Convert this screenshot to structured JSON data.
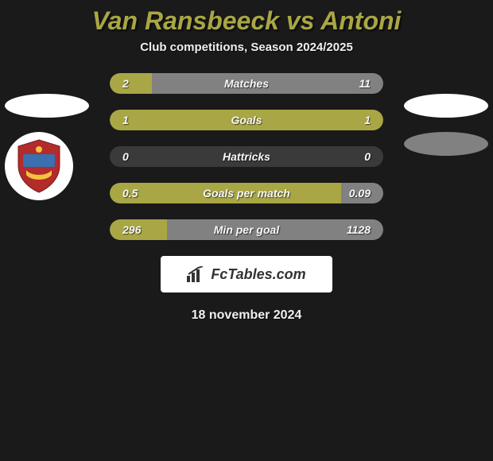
{
  "colors": {
    "bar_track": "#3a3a3a",
    "accent": "#a9a645",
    "gray_fill": "#818181",
    "white_fill": "#ffffff",
    "background": "#1a1a1a",
    "title_color": "#a9a645",
    "text_color": "#f7f7f7"
  },
  "header": {
    "title": "Van Ransbeeck vs Antoni",
    "subtitle": "Club competitions, Season 2024/2025",
    "title_fontsize": 32,
    "subtitle_fontsize": 15
  },
  "left_player": {
    "name": "Van Ransbeeck",
    "ellipse_color": "#ffffff",
    "badge_shield_color": "#b32b2b",
    "badge_shield_accent": "#3a6fb0",
    "badge_ring": "#ffffff"
  },
  "right_player": {
    "name": "Antoni",
    "ellipse1_color": "#ffffff",
    "ellipse2_color": "#818181"
  },
  "bars": [
    {
      "label": "Matches",
      "left_value": "2",
      "right_value": "11",
      "left_raw": 2,
      "right_raw": 11,
      "left_pct": 15.4,
      "right_pct": 84.6,
      "left_color": "#a9a645",
      "right_color": "#818181"
    },
    {
      "label": "Goals",
      "left_value": "1",
      "right_value": "1",
      "left_raw": 1,
      "right_raw": 1,
      "left_pct": 50,
      "right_pct": 50,
      "left_color": "#a9a645",
      "right_color": "#a9a645"
    },
    {
      "label": "Hattricks",
      "left_value": "0",
      "right_value": "0",
      "left_raw": 0,
      "right_raw": 0,
      "left_pct": 0,
      "right_pct": 0,
      "left_color": "#a9a645",
      "right_color": "#a9a645"
    },
    {
      "label": "Goals per match",
      "left_value": "0.5",
      "right_value": "0.09",
      "left_raw": 0.5,
      "right_raw": 0.09,
      "left_pct": 84.7,
      "right_pct": 15.3,
      "left_color": "#a9a645",
      "right_color": "#818181"
    },
    {
      "label": "Min per goal",
      "left_value": "296",
      "right_value": "1128",
      "left_raw": 296,
      "right_raw": 1128,
      "left_pct": 20.8,
      "right_pct": 79.2,
      "left_color": "#a9a645",
      "right_color": "#818181"
    }
  ],
  "brand": {
    "text": "FcTables.com"
  },
  "date": "18 november 2024"
}
